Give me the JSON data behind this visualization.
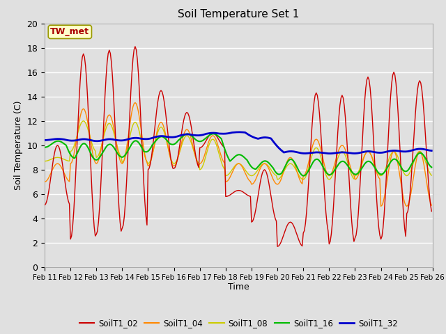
{
  "title": "Soil Temperature Set 1",
  "xlabel": "Time",
  "ylabel": "Soil Temperature (C)",
  "annotation": "TW_met",
  "ylim": [
    0,
    20
  ],
  "colors": {
    "SoilT1_02": "#cc0000",
    "SoilT1_04": "#ff8800",
    "SoilT1_08": "#cccc00",
    "SoilT1_16": "#00bb00",
    "SoilT1_32": "#0000cc"
  },
  "bg_color": "#e0e0e0",
  "grid_color": "#ffffff",
  "x_tick_labels": [
    "Feb 11",
    "Feb 12",
    "Feb 13",
    "Feb 14",
    "Feb 15",
    "Feb 16",
    "Feb 17",
    "Feb 18",
    "Feb 19",
    "Feb 20",
    "Feb 21",
    "Feb 22",
    "Feb 23",
    "Feb 24",
    "Feb 25",
    "Feb 26"
  ],
  "legend_labels": [
    "SoilT1_02",
    "SoilT1_04",
    "SoilT1_08",
    "SoilT1_16",
    "SoilT1_32"
  ],
  "peaks_02": [
    10.0,
    17.5,
    17.8,
    18.1,
    14.5,
    12.7,
    11.0,
    6.3,
    8.0,
    3.7,
    14.3,
    14.1,
    15.6,
    16.0,
    15.3,
    9.5
  ],
  "troughs_02": [
    5.1,
    2.3,
    2.7,
    3.2,
    8.0,
    8.1,
    9.8,
    5.8,
    3.7,
    1.7,
    2.8,
    1.9,
    2.4,
    2.3,
    4.4,
    7.5
  ],
  "peaks_04": [
    8.5,
    13.0,
    12.5,
    13.5,
    11.9,
    11.3,
    10.8,
    8.5,
    8.5,
    9.0,
    10.5,
    10.0,
    9.5,
    9.5,
    9.5,
    9.0
  ],
  "troughs_04": [
    7.0,
    8.5,
    8.5,
    8.5,
    8.3,
    8.3,
    8.5,
    7.0,
    6.8,
    6.8,
    7.5,
    7.5,
    7.2,
    5.0,
    5.0,
    7.5
  ],
  "peaks_08": [
    9.0,
    12.0,
    11.8,
    11.9,
    11.5,
    10.8,
    10.5,
    8.5,
    8.5,
    8.5,
    9.8,
    9.5,
    9.5,
    9.5,
    9.5,
    9.0
  ],
  "troughs_08": [
    8.7,
    9.5,
    9.0,
    8.6,
    8.5,
    8.5,
    8.0,
    7.5,
    7.5,
    7.2,
    7.2,
    7.2,
    7.5,
    7.5,
    7.5,
    8.0
  ],
  "peaks_16": [
    10.4,
    10.3,
    10.2,
    10.5,
    10.8,
    11.0,
    11.0,
    9.3,
    8.8,
    9.0,
    9.0,
    8.8,
    8.8,
    9.0,
    9.5,
    9.0
  ],
  "troughs_16": [
    9.8,
    8.5,
    8.8,
    9.0,
    9.8,
    10.2,
    10.3,
    8.5,
    7.8,
    7.3,
    7.4,
    7.5,
    7.5,
    7.5,
    8.0,
    8.8
  ],
  "peaks_32": [
    10.55,
    10.55,
    10.55,
    10.65,
    10.8,
    10.95,
    11.05,
    11.1,
    10.7,
    9.55,
    9.45,
    9.45,
    9.55,
    9.6,
    9.75,
    9.5
  ],
  "troughs_32": [
    10.4,
    10.3,
    10.3,
    10.4,
    10.55,
    10.7,
    10.85,
    11.0,
    10.4,
    9.3,
    9.3,
    9.3,
    9.3,
    9.4,
    9.5,
    9.4
  ]
}
